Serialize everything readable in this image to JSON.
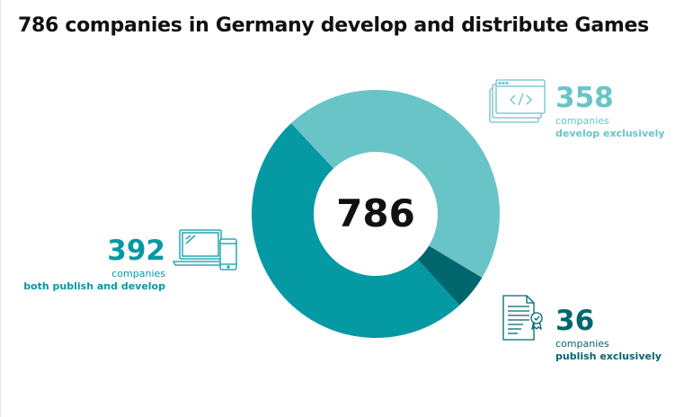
{
  "title": "786 companies in Germany develop and distribute Games",
  "total": "786",
  "colors": {
    "develop": "#69c4c7",
    "publish": "#00666e",
    "both": "#0599a3"
  },
  "labels": {
    "develop": {
      "value": "358",
      "word": "companies",
      "desc": "develop exclusively",
      "icon": "code-window-icon"
    },
    "publish": {
      "value": "36",
      "word": "companies",
      "desc": "publish exclusively",
      "icon": "certificate-document-icon"
    },
    "both": {
      "value": "392",
      "word": "companies",
      "desc": "both publish and develop",
      "icon": "laptop-phone-icon"
    }
  },
  "chart_data": {
    "type": "pie",
    "donut": true,
    "center_label": "786",
    "title": "786 companies in Germany develop and distribute Games",
    "slices": [
      {
        "name": "develop exclusively",
        "value": 358,
        "color": "#69c4c7"
      },
      {
        "name": "publish exclusively",
        "value": 36,
        "color": "#00666e"
      },
      {
        "name": "both publish and develop",
        "value": 392,
        "color": "#0599a3"
      }
    ]
  }
}
